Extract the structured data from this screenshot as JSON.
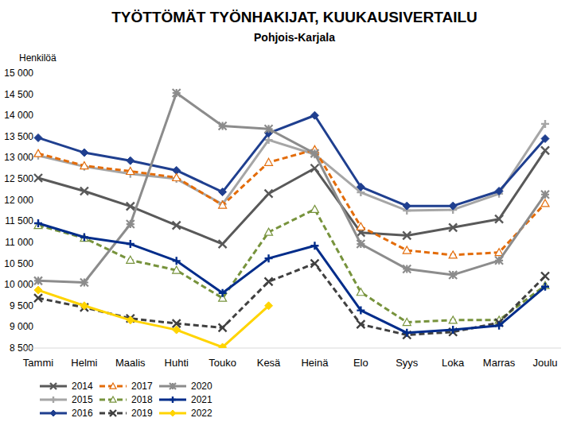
{
  "chart_data": {
    "type": "line",
    "title": "TYÖTTÖMÄT TYÖNHAKIJAT, KUUKAUSIVERTAILU",
    "subtitle": "Pohjois-Karjala",
    "y_label": "Henkilöä",
    "categories": [
      "Tammi",
      "Helmi",
      "Maalis",
      "Huhti",
      "Touko",
      "Kesä",
      "Heinä",
      "Elo",
      "Syys",
      "Loka",
      "Marras",
      "Joulu"
    ],
    "ylim": [
      8500,
      15000
    ],
    "yticks": [
      {
        "value": 8500,
        "label": "8 500"
      },
      {
        "value": 9000,
        "label": "9 000"
      },
      {
        "value": 9500,
        "label": "9 500"
      },
      {
        "value": 10000,
        "label": "10 000"
      },
      {
        "value": 10500,
        "label": "10 500"
      },
      {
        "value": 11000,
        "label": "11 000"
      },
      {
        "value": 11500,
        "label": "11 500"
      },
      {
        "value": 12000,
        "label": "12 000"
      },
      {
        "value": 12500,
        "label": "12 500"
      },
      {
        "value": 13000,
        "label": "13 000"
      },
      {
        "value": 13500,
        "label": "13 500"
      },
      {
        "value": 14000,
        "label": "14 000"
      },
      {
        "value": 14500,
        "label": "14 500"
      },
      {
        "value": 15000,
        "label": "15 000"
      }
    ],
    "grid": false,
    "legend": "bottom",
    "series": [
      {
        "name": "2014",
        "color": "#595959",
        "marker": "x",
        "line_style": "solid",
        "values": [
          12520,
          12210,
          11850,
          11400,
          10960,
          12150,
          12750,
          11230,
          11160,
          11350,
          11550,
          13170
        ]
      },
      {
        "name": "2015",
        "color": "#a6a6a6",
        "marker": "plus",
        "line_style": "solid",
        "values": [
          13050,
          12790,
          12620,
          12500,
          11900,
          13420,
          13080,
          12180,
          11750,
          11770,
          12150,
          13800
        ]
      },
      {
        "name": "2016",
        "color": "#1f3f8f",
        "marker": "diamond",
        "line_style": "solid",
        "values": [
          13470,
          13120,
          12930,
          12700,
          12190,
          13580,
          14000,
          12310,
          11860,
          11860,
          12210,
          13450
        ]
      },
      {
        "name": "2017",
        "color": "#e36c0a",
        "marker": "triangle",
        "line_style": "dashed",
        "values": [
          13100,
          12810,
          12680,
          12530,
          11880,
          12890,
          13190,
          11370,
          10810,
          10700,
          10760,
          11920
        ]
      },
      {
        "name": "2018",
        "color": "#77933c",
        "marker": "triangle",
        "line_style": "dashed",
        "values": [
          11400,
          11100,
          10580,
          10340,
          9680,
          11240,
          11780,
          9820,
          9110,
          9160,
          9160,
          9980
        ]
      },
      {
        "name": "2019",
        "color": "#404040",
        "marker": "x",
        "line_style": "dashed",
        "values": [
          9680,
          9460,
          9200,
          9080,
          8980,
          10070,
          10500,
          9060,
          8810,
          8880,
          9100,
          10200
        ]
      },
      {
        "name": "2020",
        "color": "#8c8c8c",
        "marker": "star",
        "line_style": "solid",
        "values": [
          10090,
          10050,
          11430,
          14530,
          13750,
          13680,
          13100,
          10960,
          10370,
          10230,
          10570,
          12130
        ]
      },
      {
        "name": "2021",
        "color": "#002c8a",
        "marker": "plus",
        "line_style": "solid",
        "values": [
          11450,
          11120,
          10960,
          10560,
          9800,
          10620,
          10920,
          9390,
          8860,
          8930,
          9030,
          9950
        ]
      },
      {
        "name": "2022",
        "color": "#ffd400",
        "marker": "diamond",
        "line_style": "solid",
        "values": [
          9870,
          9500,
          9160,
          8930,
          8520,
          9500,
          null,
          null,
          null,
          null,
          null,
          null
        ]
      }
    ]
  }
}
